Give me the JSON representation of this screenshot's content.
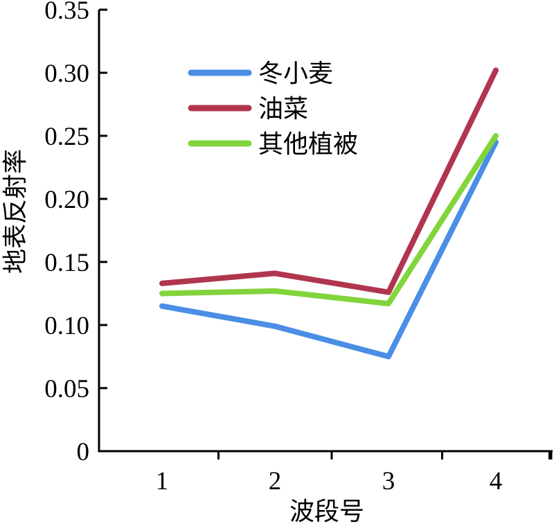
{
  "chart_data": {
    "type": "line",
    "xlabel": "波段号",
    "ylabel": "地表反射率",
    "x": [
      1,
      2,
      3,
      4
    ],
    "x_tick_labels": [
      "1",
      "2",
      "3",
      "4"
    ],
    "ylim": [
      0,
      0.35
    ],
    "y_ticks": [
      0,
      0.05,
      0.1,
      0.15,
      0.2,
      0.25,
      0.3,
      0.35
    ],
    "y_tick_labels": [
      "0",
      "0.05",
      "0.10",
      "0.15",
      "0.20",
      "0.25",
      "0.30",
      "0.35"
    ],
    "grid": false,
    "legend_position": "top-left",
    "series": [
      {
        "name": "冬小麦",
        "color": "#4a8ee6",
        "values": [
          0.115,
          0.099,
          0.075,
          0.245
        ]
      },
      {
        "name": "油菜",
        "color": "#b0364e",
        "values": [
          0.133,
          0.141,
          0.126,
          0.302
        ]
      },
      {
        "name": "其他植被",
        "color": "#82d43c",
        "values": [
          0.125,
          0.127,
          0.117,
          0.25
        ]
      }
    ]
  }
}
